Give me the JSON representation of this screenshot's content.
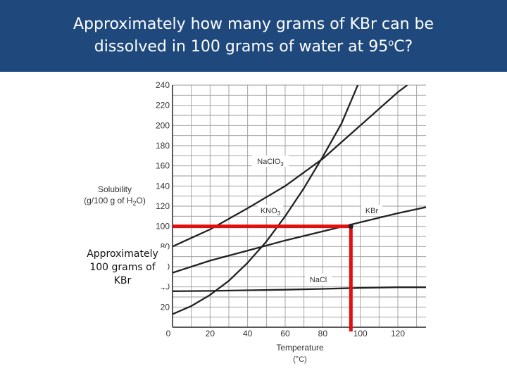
{
  "slide": {
    "title_line1": "Approximately how many grams of KBr can be",
    "title_line2_pre": "dissolved in 100 grams of water at 95",
    "title_degree": "o",
    "title_line2_post": "C?",
    "annotation_lines": [
      "Approximately",
      "100 grams of",
      "KBr"
    ],
    "header_color": "#1f497d"
  },
  "chart_data": {
    "type": "line",
    "title": "",
    "ylabel_line1": "Solubility",
    "ylabel_line2": "(g/100 g of H",
    "ylabel_sub": "2",
    "ylabel_end": "O)",
    "xlabel": "Temperature",
    "xunit": "(°C)",
    "xlim": [
      0,
      135
    ],
    "ylim": [
      0,
      240
    ],
    "x_ticks": [
      0,
      20,
      40,
      60,
      80,
      100,
      120
    ],
    "y_ticks": [
      20,
      40,
      60,
      80,
      100,
      120,
      140,
      160,
      180,
      200,
      220,
      240
    ],
    "grid": true,
    "series": [
      {
        "name": "NaClO",
        "name_sub": "3",
        "color": "#222222",
        "points": [
          [
            0,
            80
          ],
          [
            20,
            97
          ],
          [
            40,
            118
          ],
          [
            60,
            140
          ],
          [
            80,
            167
          ],
          [
            100,
            200
          ],
          [
            120,
            233
          ],
          [
            125,
            240
          ]
        ]
      },
      {
        "name": "KNO",
        "name_sub": "3",
        "color": "#222222",
        "points": [
          [
            0,
            13
          ],
          [
            10,
            21
          ],
          [
            20,
            32
          ],
          [
            30,
            46
          ],
          [
            40,
            64
          ],
          [
            50,
            85
          ],
          [
            60,
            110
          ],
          [
            70,
            138
          ],
          [
            80,
            169
          ],
          [
            90,
            202
          ],
          [
            100,
            246
          ]
        ]
      },
      {
        "name": "KBr",
        "name_sub": "",
        "color": "#222222",
        "points": [
          [
            0,
            54
          ],
          [
            20,
            66
          ],
          [
            40,
            76
          ],
          [
            60,
            86
          ],
          [
            80,
            95
          ],
          [
            100,
            104
          ],
          [
            120,
            113
          ],
          [
            135,
            119
          ]
        ]
      },
      {
        "name": "NaCl",
        "name_sub": "",
        "color": "#222222",
        "points": [
          [
            0,
            35.7
          ],
          [
            20,
            36
          ],
          [
            40,
            36.6
          ],
          [
            60,
            37.2
          ],
          [
            80,
            38
          ],
          [
            100,
            39
          ],
          [
            120,
            39.6
          ],
          [
            135,
            39.6
          ]
        ]
      }
    ],
    "highlight": {
      "x": 95,
      "y": 100,
      "color": "#e01010"
    }
  }
}
